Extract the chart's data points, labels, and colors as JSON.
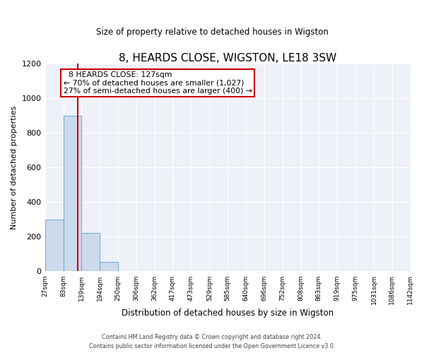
{
  "title": "8, HEARDS CLOSE, WIGSTON, LE18 3SW",
  "subtitle": "Size of property relative to detached houses in Wigston",
  "xlabel": "Distribution of detached houses by size in Wigston",
  "ylabel": "Number of detached properties",
  "bar_edges": [
    27,
    83,
    139,
    194,
    250,
    306,
    362,
    417,
    473,
    529,
    585,
    640,
    696,
    752,
    808,
    863,
    919,
    975,
    1031,
    1086,
    1142
  ],
  "bar_heights": [
    300,
    900,
    220,
    55,
    0,
    0,
    0,
    0,
    0,
    0,
    0,
    0,
    0,
    0,
    0,
    0,
    0,
    0,
    0,
    0
  ],
  "bar_color": "#ccdaec",
  "bar_edge_color": "#7aadd4",
  "property_line_x": 127,
  "property_line_color": "#cc0000",
  "annotation_title": "8 HEARDS CLOSE: 127sqm",
  "annotation_line1": "← 70% of detached houses are smaller (1,027)",
  "annotation_line2": "27% of semi-detached houses are larger (400) →",
  "annotation_box_color": "#ffffff",
  "annotation_box_edge": "#cc0000",
  "ylim": [
    0,
    1200
  ],
  "xlim": [
    27,
    1142
  ],
  "tick_labels": [
    "27sqm",
    "83sqm",
    "139sqm",
    "194sqm",
    "250sqm",
    "306sqm",
    "362sqm",
    "417sqm",
    "473sqm",
    "529sqm",
    "585sqm",
    "640sqm",
    "696sqm",
    "752sqm",
    "808sqm",
    "863sqm",
    "919sqm",
    "975sqm",
    "1031sqm",
    "1086sqm",
    "1142sqm"
  ],
  "footer1": "Contains HM Land Registry data © Crown copyright and database right 2024.",
  "footer2": "Contains public sector information licensed under the Open Government Licence v3.0.",
  "bg_color": "#ffffff",
  "plot_bg_color": "#eef2f8"
}
